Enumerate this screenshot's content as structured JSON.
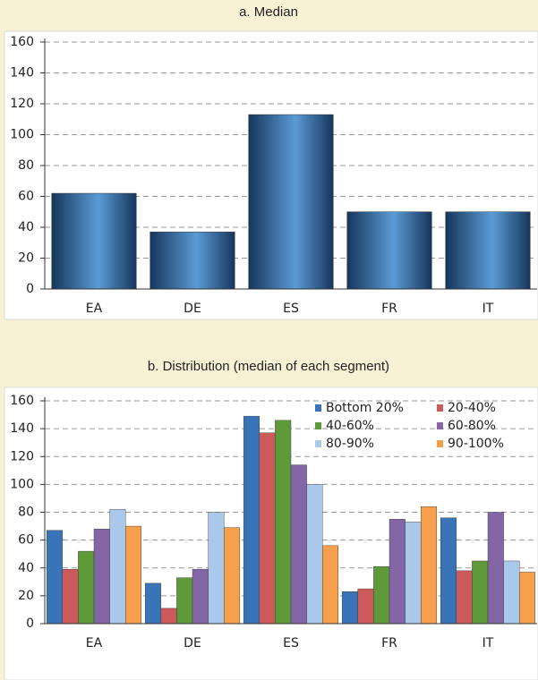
{
  "chart_data": [
    {
      "type": "bar",
      "title": "a. Median",
      "categories": [
        "EA",
        "DE",
        "ES",
        "FR",
        "IT"
      ],
      "values": [
        62,
        37,
        113,
        50,
        50
      ],
      "color": "#5b9bd5",
      "ylim": [
        0,
        160
      ],
      "yticks": [
        0,
        20,
        40,
        60,
        80,
        100,
        120,
        140,
        160
      ],
      "grid": true
    },
    {
      "type": "grouped_bar",
      "title": "b. Distribution (median of each segment)",
      "categories": [
        "EA",
        "DE",
        "ES",
        "FR",
        "IT"
      ],
      "series": [
        {
          "name": "Bottom 20%",
          "color": "#3a74b8",
          "values": [
            67,
            29,
            149,
            23,
            76
          ]
        },
        {
          "name": "20-40%",
          "color": "#cc5a5a",
          "values": [
            39,
            11,
            137,
            25,
            38
          ]
        },
        {
          "name": "40-60%",
          "color": "#5e9a3a",
          "values": [
            52,
            33,
            146,
            41,
            45
          ]
        },
        {
          "name": "60-80%",
          "color": "#8466a6",
          "values": [
            68,
            39,
            114,
            75,
            80
          ]
        },
        {
          "name": "80-90%",
          "color": "#a9c8ea",
          "values": [
            82,
            80,
            100,
            73,
            45
          ]
        },
        {
          "name": "90-100%",
          "color": "#f6a04e",
          "values": [
            70,
            69,
            56,
            84,
            37
          ]
        }
      ],
      "ylim": [
        0,
        160
      ],
      "yticks": [
        0,
        20,
        40,
        60,
        80,
        100,
        120,
        140,
        160
      ],
      "grid": true,
      "legend": "top-right"
    }
  ]
}
